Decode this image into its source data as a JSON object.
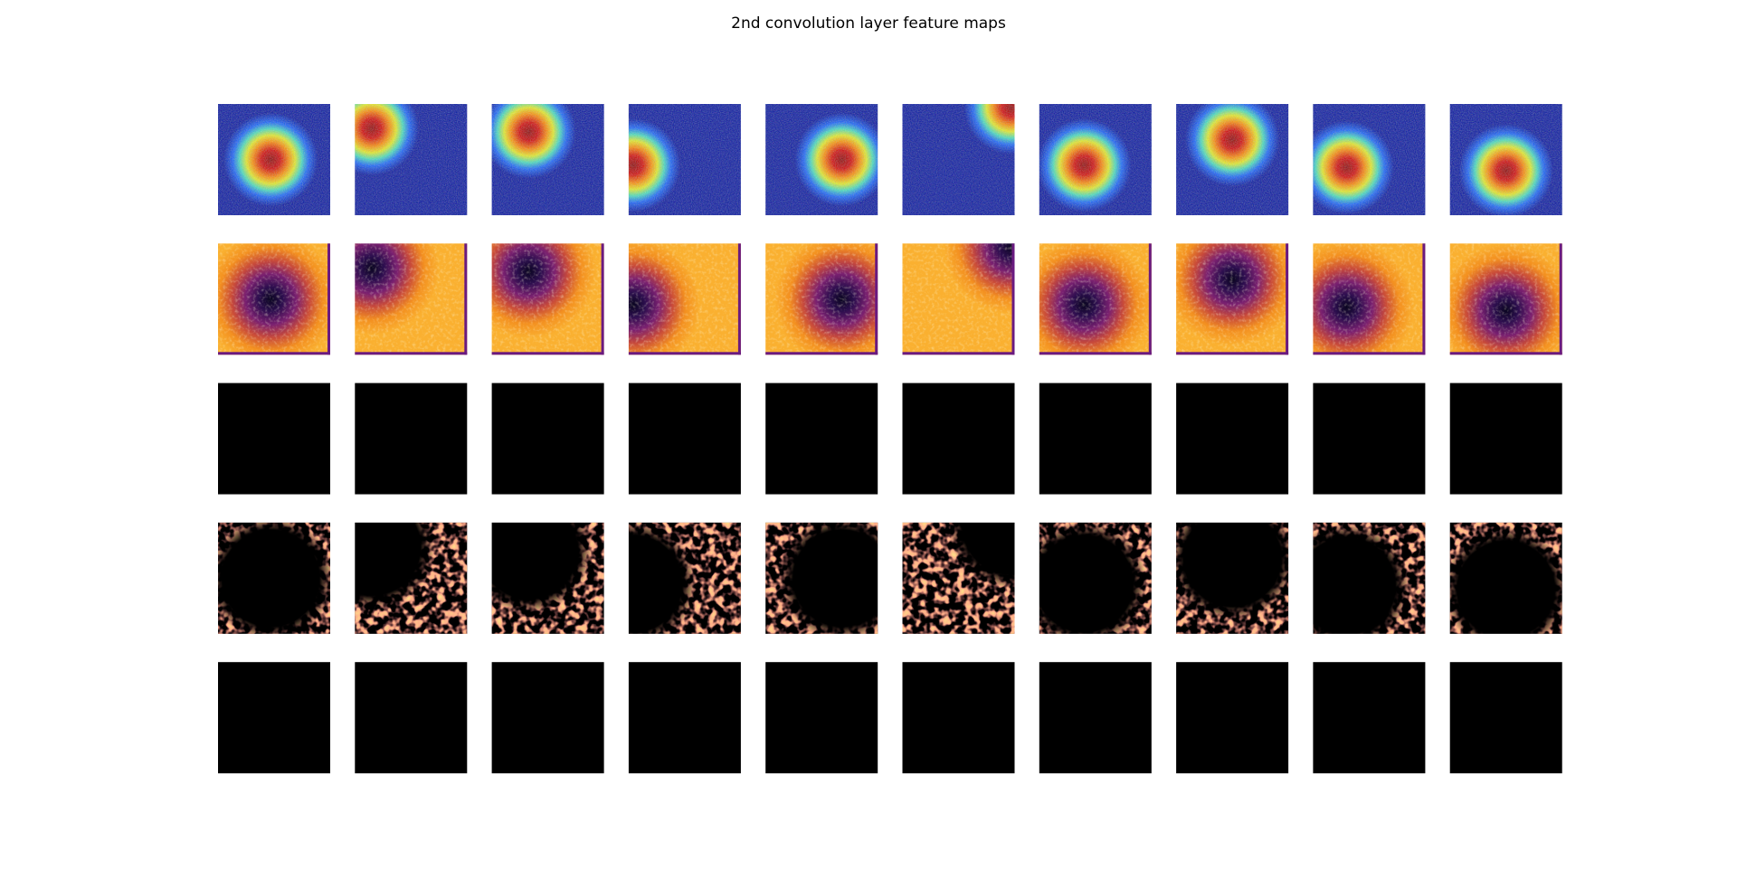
{
  "title": "2nd convolution layer feature maps"
}
